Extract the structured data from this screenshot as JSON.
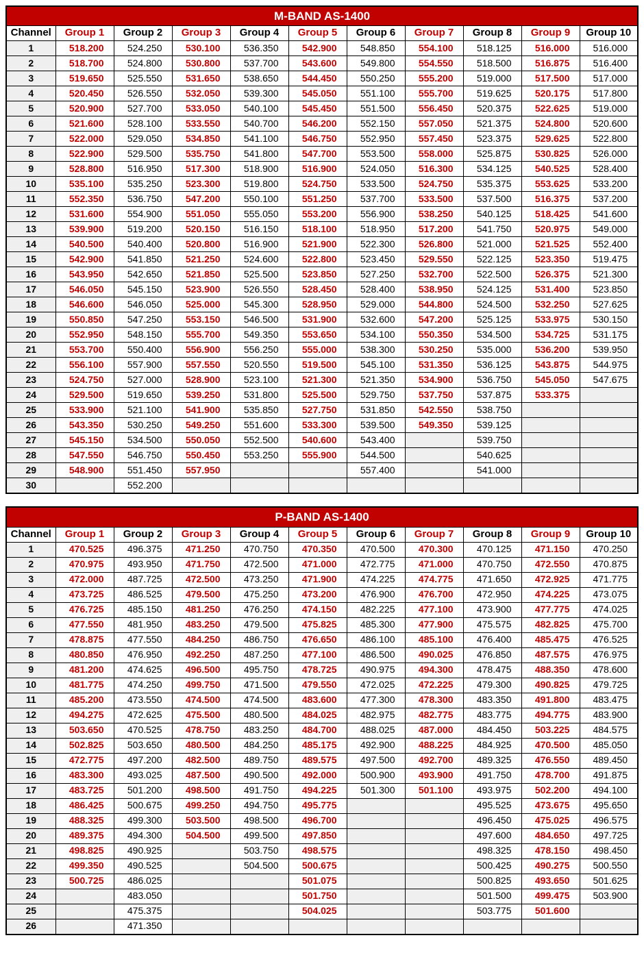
{
  "tables": [
    {
      "title": "M-BAND AS-1400",
      "channel_label": "Channel",
      "group_labels": [
        "Group 1",
        "Group 2",
        "Group 3",
        "Group 4",
        "Group 5",
        "Group 6",
        "Group 7",
        "Group 8",
        "Group 9",
        "Group 10"
      ],
      "red_cols": [
        0,
        2,
        4,
        6,
        8
      ],
      "num_channels": 30,
      "colors": {
        "title_bg": "#c10000",
        "title_fg": "#ffffff",
        "red_text": "#c10000",
        "black_text": "#000000",
        "ch_bg": "#efefef",
        "empty_bg": "#efefef",
        "border": "#000000"
      },
      "fonts": {
        "title_size_pt": 13,
        "header_size_pt": 11,
        "cell_size_pt": 10,
        "family": "Arial"
      },
      "rows": [
        [
          "518.200",
          "524.250",
          "530.100",
          "536.350",
          "542.900",
          "548.850",
          "554.100",
          "518.125",
          "516.000",
          "516.000"
        ],
        [
          "518.700",
          "524.800",
          "530.800",
          "537.700",
          "543.600",
          "549.800",
          "554.550",
          "518.500",
          "516.875",
          "516.400"
        ],
        [
          "519.650",
          "525.550",
          "531.650",
          "538.650",
          "544.450",
          "550.250",
          "555.200",
          "519.000",
          "517.500",
          "517.000"
        ],
        [
          "520.450",
          "526.550",
          "532.050",
          "539.300",
          "545.050",
          "551.100",
          "555.700",
          "519.625",
          "520.175",
          "517.800"
        ],
        [
          "520.900",
          "527.700",
          "533.050",
          "540.100",
          "545.450",
          "551.500",
          "556.450",
          "520.375",
          "522.625",
          "519.000"
        ],
        [
          "521.600",
          "528.100",
          "533.550",
          "540.700",
          "546.200",
          "552.150",
          "557.050",
          "521.375",
          "524.800",
          "520.600"
        ],
        [
          "522.000",
          "529.050",
          "534.850",
          "541.100",
          "546.750",
          "552.950",
          "557.450",
          "523.375",
          "529.625",
          "522.800"
        ],
        [
          "522.900",
          "529.500",
          "535.750",
          "541.800",
          "547.700",
          "553.500",
          "558.000",
          "525.875",
          "530.825",
          "526.000"
        ],
        [
          "528.800",
          "516.950",
          "517.300",
          "518.900",
          "516.900",
          "524.050",
          "516.300",
          "534.125",
          "540.525",
          "528.400"
        ],
        [
          "535.100",
          "535.250",
          "523.300",
          "519.800",
          "524.750",
          "533.500",
          "524.750",
          "535.375",
          "553.625",
          "533.200"
        ],
        [
          "552.350",
          "536.750",
          "547.200",
          "550.100",
          "551.250",
          "537.700",
          "533.500",
          "537.500",
          "516.375",
          "537.200"
        ],
        [
          "531.600",
          "554.900",
          "551.050",
          "555.050",
          "553.200",
          "556.900",
          "538.250",
          "540.125",
          "518.425",
          "541.600"
        ],
        [
          "539.900",
          "519.200",
          "520.150",
          "516.150",
          "518.100",
          "518.950",
          "517.200",
          "541.750",
          "520.975",
          "549.000"
        ],
        [
          "540.500",
          "540.400",
          "520.800",
          "516.900",
          "521.900",
          "522.300",
          "526.800",
          "521.000",
          "521.525",
          "552.400"
        ],
        [
          "542.900",
          "541.850",
          "521.250",
          "524.600",
          "522.800",
          "523.450",
          "529.550",
          "522.125",
          "523.350",
          "519.475"
        ],
        [
          "543.950",
          "542.650",
          "521.850",
          "525.500",
          "523.850",
          "527.250",
          "532.700",
          "522.500",
          "526.375",
          "521.300"
        ],
        [
          "546.050",
          "545.150",
          "523.900",
          "526.550",
          "528.450",
          "528.400",
          "538.950",
          "524.125",
          "531.400",
          "523.850"
        ],
        [
          "546.600",
          "546.050",
          "525.000",
          "545.300",
          "528.950",
          "529.000",
          "544.800",
          "524.500",
          "532.250",
          "527.625"
        ],
        [
          "550.850",
          "547.250",
          "553.150",
          "546.500",
          "531.900",
          "532.600",
          "547.200",
          "525.125",
          "533.975",
          "530.150"
        ],
        [
          "552.950",
          "548.150",
          "555.700",
          "549.350",
          "553.650",
          "534.100",
          "550.350",
          "534.500",
          "534.725",
          "531.175"
        ],
        [
          "553.700",
          "550.400",
          "556.900",
          "556.250",
          "555.000",
          "538.300",
          "530.250",
          "535.000",
          "536.200",
          "539.950"
        ],
        [
          "556.100",
          "557.900",
          "557.550",
          "520.550",
          "519.500",
          "545.100",
          "531.350",
          "536.125",
          "543.875",
          "544.975"
        ],
        [
          "524.750",
          "527.000",
          "528.900",
          "523.100",
          "521.300",
          "521.350",
          "534.900",
          "536.750",
          "545.050",
          "547.675"
        ],
        [
          "529.500",
          "519.650",
          "539.250",
          "531.800",
          "525.500",
          "529.750",
          "537.750",
          "537.875",
          "533.375",
          ""
        ],
        [
          "533.900",
          "521.100",
          "541.900",
          "535.850",
          "527.750",
          "531.850",
          "542.550",
          "538.750",
          "",
          ""
        ],
        [
          "543.350",
          "530.250",
          "549.250",
          "551.600",
          "533.300",
          "539.500",
          "549.350",
          "539.125",
          "",
          ""
        ],
        [
          "545.150",
          "534.500",
          "550.050",
          "552.500",
          "540.600",
          "543.400",
          "",
          "539.750",
          "",
          ""
        ],
        [
          "547.550",
          "546.750",
          "550.450",
          "553.250",
          "555.900",
          "544.500",
          "",
          "540.625",
          "",
          ""
        ],
        [
          "548.900",
          "551.450",
          "557.950",
          "",
          "",
          "557.400",
          "",
          "541.000",
          "",
          ""
        ],
        [
          "",
          "552.200",
          "",
          "",
          "",
          "",
          "",
          "",
          "",
          ""
        ]
      ]
    },
    {
      "title": "P-BAND AS-1400",
      "channel_label": "Channel",
      "group_labels": [
        "Group 1",
        "Group 2",
        "Group 3",
        "Group 4",
        "Group 5",
        "Group 6",
        "Group 7",
        "Group 8",
        "Group 9",
        "Group 10"
      ],
      "red_cols": [
        0,
        2,
        4,
        6,
        8
      ],
      "num_channels": 26,
      "colors": {
        "title_bg": "#c10000",
        "title_fg": "#ffffff",
        "red_text": "#c10000",
        "black_text": "#000000",
        "ch_bg": "#efefef",
        "empty_bg": "#efefef",
        "border": "#000000"
      },
      "fonts": {
        "title_size_pt": 13,
        "header_size_pt": 11,
        "cell_size_pt": 10,
        "family": "Arial"
      },
      "rows": [
        [
          "470.525",
          "496.375",
          "471.250",
          "470.750",
          "470.350",
          "470.500",
          "470.300",
          "470.125",
          "471.150",
          "470.250"
        ],
        [
          "470.975",
          "493.950",
          "471.750",
          "472.500",
          "471.000",
          "472.775",
          "471.000",
          "470.750",
          "472.550",
          "470.875"
        ],
        [
          "472.000",
          "487.725",
          "472.500",
          "473.250",
          "471.900",
          "474.225",
          "474.775",
          "471.650",
          "472.925",
          "471.775"
        ],
        [
          "473.725",
          "486.525",
          "479.500",
          "475.250",
          "473.200",
          "476.900",
          "476.700",
          "472.950",
          "474.225",
          "473.075"
        ],
        [
          "476.725",
          "485.150",
          "481.250",
          "476.250",
          "474.150",
          "482.225",
          "477.100",
          "473.900",
          "477.775",
          "474.025"
        ],
        [
          "477.550",
          "481.950",
          "483.250",
          "479.500",
          "475.825",
          "485.300",
          "477.900",
          "475.575",
          "482.825",
          "475.700"
        ],
        [
          "478.875",
          "477.550",
          "484.250",
          "486.750",
          "476.650",
          "486.100",
          "485.100",
          "476.400",
          "485.475",
          "476.525"
        ],
        [
          "480.850",
          "476.950",
          "492.250",
          "487.250",
          "477.100",
          "486.500",
          "490.025",
          "476.850",
          "487.575",
          "476.975"
        ],
        [
          "481.200",
          "474.625",
          "496.500",
          "495.750",
          "478.725",
          "490.975",
          "494.300",
          "478.475",
          "488.350",
          "478.600"
        ],
        [
          "481.775",
          "474.250",
          "499.750",
          "471.500",
          "479.550",
          "472.025",
          "472.225",
          "479.300",
          "490.825",
          "479.725"
        ],
        [
          "485.200",
          "473.550",
          "474.500",
          "474.500",
          "483.600",
          "477.300",
          "478.300",
          "483.350",
          "491.800",
          "483.475"
        ],
        [
          "494.275",
          "472.625",
          "475.500",
          "480.500",
          "484.025",
          "482.975",
          "482.775",
          "483.775",
          "494.775",
          "483.900"
        ],
        [
          "503.650",
          "470.525",
          "478.750",
          "483.250",
          "484.700",
          "488.025",
          "487.000",
          "484.450",
          "503.225",
          "484.575"
        ],
        [
          "502.825",
          "503.650",
          "480.500",
          "484.250",
          "485.175",
          "492.900",
          "488.225",
          "484.925",
          "470.500",
          "485.050"
        ],
        [
          "472.775",
          "497.200",
          "482.500",
          "489.750",
          "489.575",
          "497.500",
          "492.700",
          "489.325",
          "476.550",
          "489.450"
        ],
        [
          "483.300",
          "493.025",
          "487.500",
          "490.500",
          "492.000",
          "500.900",
          "493.900",
          "491.750",
          "478.700",
          "491.875"
        ],
        [
          "483.725",
          "501.200",
          "498.500",
          "491.750",
          "494.225",
          "501.300",
          "501.100",
          "493.975",
          "502.200",
          "494.100"
        ],
        [
          "486.425",
          "500.675",
          "499.250",
          "494.750",
          "495.775",
          "",
          "",
          "495.525",
          "473.675",
          "495.650"
        ],
        [
          "488.325",
          "499.300",
          "503.500",
          "498.500",
          "496.700",
          "",
          "",
          "496.450",
          "475.025",
          "496.575"
        ],
        [
          "489.375",
          "494.300",
          "504.500",
          "499.500",
          "497.850",
          "",
          "",
          "497.600",
          "484.650",
          "497.725"
        ],
        [
          "498.825",
          "490.925",
          "",
          "503.750",
          "498.575",
          "",
          "",
          "498.325",
          "478.150",
          "498.450"
        ],
        [
          "499.350",
          "490.525",
          "",
          "504.500",
          "500.675",
          "",
          "",
          "500.425",
          "490.275",
          "500.550"
        ],
        [
          "500.725",
          "486.025",
          "",
          "",
          "501.075",
          "",
          "",
          "500.825",
          "493.650",
          "501.625"
        ],
        [
          "",
          "483.050",
          "",
          "",
          "501.750",
          "",
          "",
          "501.500",
          "499.475",
          "503.900"
        ],
        [
          "",
          "475.375",
          "",
          "",
          "504.025",
          "",
          "",
          "503.775",
          "501.600",
          ""
        ],
        [
          "",
          "471.350",
          "",
          "",
          "",
          "",
          "",
          "",
          "",
          ""
        ]
      ]
    }
  ]
}
